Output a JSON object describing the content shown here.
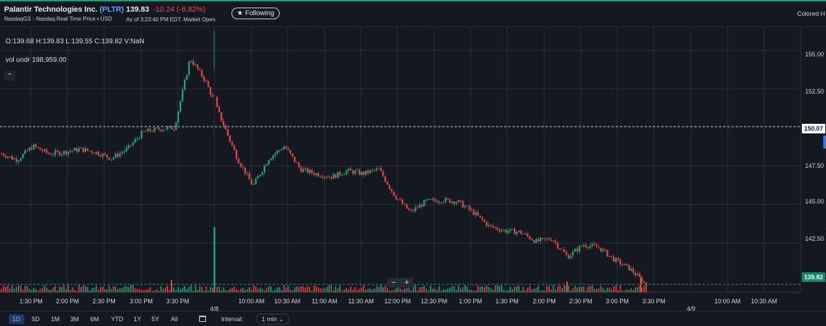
{
  "header": {
    "company": "Palantir Technologies Inc.",
    "ticker": "(PLTR)",
    "exchange": "NasdaqGS - Nasdaq Real Time Price • USD",
    "price": "139.83",
    "change": "-10.24 (-6.82%)",
    "as_of": "As of 3:23:40 PM EDT. Market Open.",
    "follow_label": "Following",
    "colored_label": "Colored H"
  },
  "legend": {
    "ohlc": "O:139.68  H:139.83  L:139.55  C:139.82  V:NaN",
    "vol_under": "vol undr  198,959.00",
    "collapse_icon": "chevron-up-icon"
  },
  "chart_data": {
    "type": "candlestick",
    "ylim": [
      139.3,
      156.5
    ],
    "y_ticks": [
      "155.00",
      "152.50",
      "150.00",
      "147.50",
      "145.00",
      "142.50"
    ],
    "x_ticks": [
      "1:30 PM",
      "2:00 PM",
      "2:30 PM",
      "3:00 PM",
      "3:30 PM",
      "4/8",
      "10:00 AM",
      "10:30 AM",
      "11:00 AM",
      "11:30 AM",
      "12:00 PM",
      "12:30 PM",
      "1:00 PM",
      "1:30 PM",
      "2:00 PM",
      "2:30 PM",
      "3:00 PM",
      "3:30 PM",
      "4/9",
      "10:00 AM",
      "10:30 AM"
    ],
    "prev_close_label": "150.07",
    "prev_close": 150.07,
    "last_price_label": "139.82",
    "last_price": 139.82,
    "price_path": [
      148.3,
      147.9,
      148.8,
      148.3,
      148.4,
      148.6,
      148.4,
      148.0,
      148.6,
      149.7,
      149.9,
      150.0,
      154.5,
      153.0,
      150.5,
      148.0,
      146.2,
      148.0,
      148.8,
      147.3,
      147.0,
      146.8,
      147.2,
      147.0,
      147.3,
      145.6,
      144.5,
      145.2,
      145.3,
      145.2,
      144.5,
      143.6,
      143.3,
      143.2,
      142.6,
      142.8,
      141.6,
      142.4,
      142.2,
      141.4,
      140.8,
      139.8
    ],
    "volume_spikes": [
      {
        "x": "3:30 PM",
        "level": 0.5
      },
      {
        "x": "4/8",
        "level": 1.0
      },
      {
        "x": "2:30 PM",
        "level": 0.25
      },
      {
        "x": "3:30 PM",
        "level": 0.4
      }
    ],
    "colors": {
      "up": "#1fa37c",
      "down": "#e0453f",
      "grid": "#2a303b"
    }
  },
  "zoom": {
    "minus": "−",
    "plus": "+"
  },
  "footer": {
    "ranges": [
      "1D",
      "5D",
      "1M",
      "3M",
      "6M",
      "YTD",
      "1Y",
      "5Y",
      "All"
    ],
    "active_range": "1D",
    "interval_label": "Interval:",
    "interval_value": "1 min ⌄"
  }
}
